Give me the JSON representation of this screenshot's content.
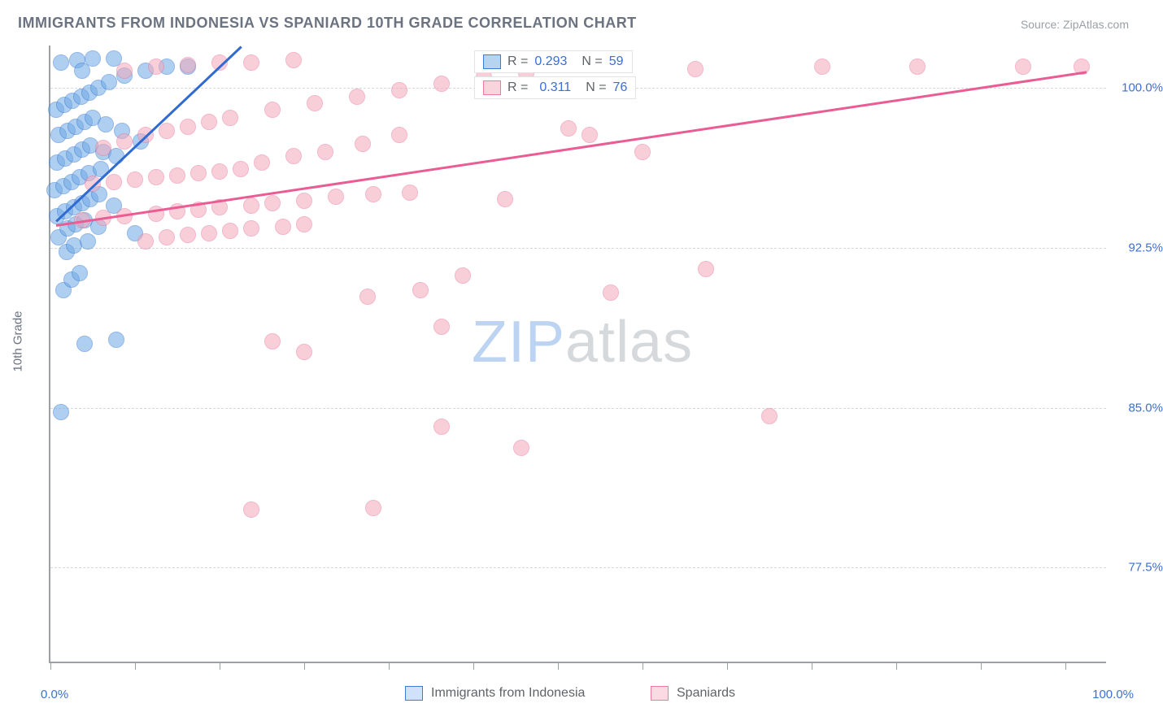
{
  "title": "IMMIGRANTS FROM INDONESIA VS SPANIARD 10TH GRADE CORRELATION CHART",
  "source": "Source: ZipAtlas.com",
  "y_axis_title": "10th Grade",
  "watermark": {
    "text_zip": "ZIP",
    "text_atlas": "atlas",
    "color_zip": "#bcd3f2",
    "color_atlas": "#d6d9dc"
  },
  "chart": {
    "type": "scatter",
    "xlim": [
      0,
      100
    ],
    "ylim": [
      73,
      102
    ],
    "x_min_label": "0.0%",
    "x_max_label": "100.0%",
    "y_ticks": [
      {
        "value": 100.0,
        "label": "100.0%"
      },
      {
        "value": 92.5,
        "label": "92.5%"
      },
      {
        "value": 85.0,
        "label": "85.0%"
      },
      {
        "value": 77.5,
        "label": "77.5%"
      }
    ],
    "x_ticks_minor": [
      0,
      8,
      16,
      24,
      32,
      40,
      48,
      56,
      64,
      72,
      80,
      88,
      96
    ],
    "background_color": "#ffffff",
    "grid_color": "#d6d9dc",
    "axis_color": "#9aa0a6",
    "marker_radius": 10,
    "marker_opacity": 0.55,
    "series": [
      {
        "name": "Immigrants from Indonesia",
        "fill_color": "#6ea8e6",
        "stroke_color": "#3b7dd1",
        "R": "0.293",
        "N": "59",
        "trend": {
          "x1": 0.5,
          "y1": 93.8,
          "x2": 18.0,
          "y2": 102.0,
          "color": "#2f6bd1"
        },
        "points": [
          [
            1,
            84.8
          ],
          [
            3.2,
            88
          ],
          [
            6.2,
            88.2
          ],
          [
            1.2,
            90.5
          ],
          [
            2,
            91
          ],
          [
            2.8,
            91.3
          ],
          [
            1.5,
            92.3
          ],
          [
            2.2,
            92.6
          ],
          [
            3.5,
            92.8
          ],
          [
            0.8,
            93
          ],
          [
            1.6,
            93.4
          ],
          [
            2.4,
            93.6
          ],
          [
            3.2,
            93.8
          ],
          [
            4.5,
            93.5
          ],
          [
            0.6,
            94
          ],
          [
            1.4,
            94.2
          ],
          [
            2.2,
            94.4
          ],
          [
            3,
            94.6
          ],
          [
            3.8,
            94.8
          ],
          [
            4.6,
            95
          ],
          [
            0.4,
            95.2
          ],
          [
            1.2,
            95.4
          ],
          [
            2,
            95.6
          ],
          [
            2.8,
            95.8
          ],
          [
            3.6,
            96
          ],
          [
            4.8,
            96.2
          ],
          [
            6,
            94.5
          ],
          [
            0.6,
            96.5
          ],
          [
            1.4,
            96.7
          ],
          [
            2.2,
            96.9
          ],
          [
            3,
            97.1
          ],
          [
            3.8,
            97.3
          ],
          [
            5,
            97
          ],
          [
            6.2,
            96.8
          ],
          [
            8,
            93.2
          ],
          [
            0.8,
            97.8
          ],
          [
            1.6,
            98
          ],
          [
            2.4,
            98.2
          ],
          [
            3.2,
            98.4
          ],
          [
            4,
            98.6
          ],
          [
            5.2,
            98.3
          ],
          [
            6.8,
            98
          ],
          [
            8.5,
            97.5
          ],
          [
            0.5,
            99
          ],
          [
            1.3,
            99.2
          ],
          [
            2.1,
            99.4
          ],
          [
            2.9,
            99.6
          ],
          [
            3.7,
            99.8
          ],
          [
            4.5,
            100
          ],
          [
            5.5,
            100.3
          ],
          [
            7,
            100.6
          ],
          [
            9,
            100.8
          ],
          [
            11,
            101
          ],
          [
            13,
            101
          ],
          [
            1,
            101.2
          ],
          [
            2.5,
            101.3
          ],
          [
            4,
            101.4
          ],
          [
            6,
            101.4
          ],
          [
            3,
            100.8
          ]
        ]
      },
      {
        "name": "Spaniards",
        "fill_color": "#f4a9bb",
        "stroke_color": "#ea7ca0",
        "R": "0.311",
        "N": "76",
        "trend": {
          "x1": 0.5,
          "y1": 93.6,
          "x2": 98.0,
          "y2": 100.8,
          "color": "#ea5c94"
        },
        "points": [
          [
            19,
            80.2
          ],
          [
            30.5,
            80.3
          ],
          [
            37,
            84.1
          ],
          [
            68,
            84.6
          ],
          [
            44.5,
            83.1
          ],
          [
            21,
            88.1
          ],
          [
            24,
            87.6
          ],
          [
            37,
            88.8
          ],
          [
            30,
            90.2
          ],
          [
            35,
            90.5
          ],
          [
            53,
            90.4
          ],
          [
            39,
            91.2
          ],
          [
            62,
            91.5
          ],
          [
            9,
            92.8
          ],
          [
            11,
            93
          ],
          [
            13,
            93.1
          ],
          [
            15,
            93.2
          ],
          [
            17,
            93.3
          ],
          [
            19,
            93.4
          ],
          [
            22,
            93.5
          ],
          [
            24,
            93.6
          ],
          [
            3,
            93.8
          ],
          [
            5,
            93.9
          ],
          [
            7,
            94
          ],
          [
            10,
            94.1
          ],
          [
            12,
            94.2
          ],
          [
            14,
            94.3
          ],
          [
            16,
            94.4
          ],
          [
            19,
            94.5
          ],
          [
            21,
            94.6
          ],
          [
            24,
            94.7
          ],
          [
            27,
            94.9
          ],
          [
            30.5,
            95
          ],
          [
            34,
            95.1
          ],
          [
            43,
            94.8
          ],
          [
            4,
            95.5
          ],
          [
            6,
            95.6
          ],
          [
            8,
            95.7
          ],
          [
            10,
            95.8
          ],
          [
            12,
            95.9
          ],
          [
            14,
            96
          ],
          [
            16,
            96.1
          ],
          [
            18,
            96.2
          ],
          [
            20,
            96.5
          ],
          [
            23,
            96.8
          ],
          [
            26,
            97
          ],
          [
            29.5,
            97.4
          ],
          [
            33,
            97.8
          ],
          [
            5,
            97.2
          ],
          [
            7,
            97.5
          ],
          [
            9,
            97.8
          ],
          [
            11,
            98
          ],
          [
            13,
            98.2
          ],
          [
            15,
            98.4
          ],
          [
            17,
            98.6
          ],
          [
            21,
            99
          ],
          [
            25,
            99.3
          ],
          [
            29,
            99.6
          ],
          [
            33,
            99.9
          ],
          [
            37,
            100.2
          ],
          [
            41,
            100.5
          ],
          [
            45,
            100.7
          ],
          [
            49,
            98.1
          ],
          [
            51,
            97.8
          ],
          [
            56,
            97
          ],
          [
            61,
            100.9
          ],
          [
            73,
            101
          ],
          [
            82,
            101
          ],
          [
            92,
            101
          ],
          [
            97.5,
            101
          ],
          [
            7,
            100.8
          ],
          [
            10,
            101
          ],
          [
            13,
            101.1
          ],
          [
            16,
            101.2
          ],
          [
            19,
            101.2
          ],
          [
            23,
            101.3
          ]
        ]
      }
    ]
  },
  "bottom_legend": {
    "items": [
      {
        "label": "Immigrants from Indonesia",
        "swatch_fill": "#cfe2f9",
        "swatch_stroke": "#3b7dd1"
      },
      {
        "label": "Spaniards",
        "swatch_fill": "#fadbe4",
        "swatch_stroke": "#ea7ca0"
      }
    ]
  }
}
